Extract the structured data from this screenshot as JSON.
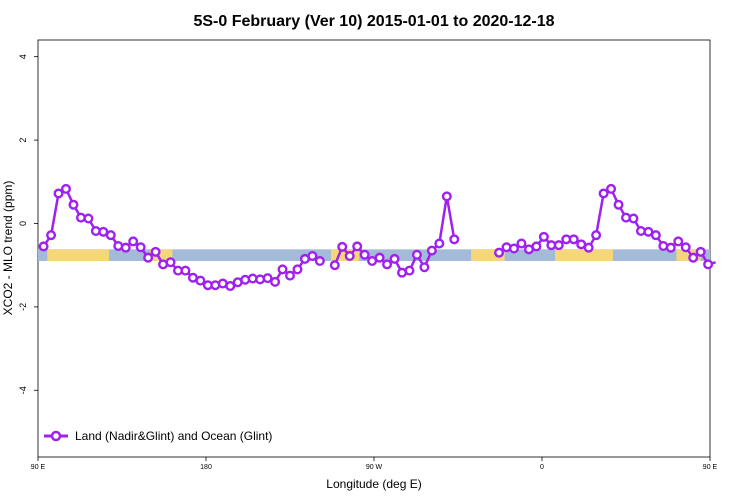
{
  "chart_data": {
    "type": "line",
    "title": "5S-0 February (Ver 10)   2015-01-01 to 2020-12-18",
    "xlabel": "Longitude (deg E)",
    "ylabel": "XCO2 - MLO trend (ppm)",
    "xlim": [
      90,
      450
    ],
    "ylim": [
      -5.6,
      4.4
    ],
    "x_ticks": [
      {
        "value": 90,
        "label": "90 E"
      },
      {
        "value": 180,
        "label": "180"
      },
      {
        "value": 270,
        "label": "90 W"
      },
      {
        "value": 360,
        "label": "0"
      },
      {
        "value": 450,
        "label": "90 E"
      },
      {
        "value": 540,
        "label": "180"
      }
    ],
    "y_ticks": [
      {
        "value": -4,
        "label": "-4"
      },
      {
        "value": -2,
        "label": "-2"
      },
      {
        "value": 0,
        "label": "0"
      },
      {
        "value": 2,
        "label": "2"
      },
      {
        "value": 4,
        "label": "4"
      }
    ],
    "legend": {
      "position": "bottom-left",
      "label": "Land (Nadir&Glint) and Ocean (Glint)"
    },
    "series": [
      {
        "name": "Land (Nadir&Glint) and Ocean (Glint)",
        "color": "#a020f0",
        "points": [
          [
            93,
            -0.55
          ],
          [
            97,
            -0.28
          ],
          [
            101,
            0.72
          ],
          [
            105,
            0.83
          ],
          [
            109,
            0.45
          ],
          [
            113,
            0.14
          ],
          [
            117,
            0.12
          ],
          [
            121,
            -0.18
          ],
          [
            125,
            -0.2
          ],
          [
            129,
            -0.28
          ],
          [
            133,
            -0.54
          ],
          [
            137,
            -0.58
          ],
          [
            141,
            -0.43
          ],
          [
            145,
            -0.57
          ],
          [
            149,
            -0.82
          ],
          [
            153,
            -0.68
          ],
          [
            157,
            -0.98
          ],
          [
            161,
            -0.93
          ],
          [
            165,
            -1.13
          ],
          [
            169,
            -1.13
          ],
          [
            173,
            -1.3
          ],
          [
            177,
            -1.37
          ],
          [
            181,
            -1.48
          ],
          [
            185,
            -1.48
          ],
          [
            189,
            -1.44
          ],
          [
            193,
            -1.5
          ],
          [
            197,
            -1.41
          ],
          [
            201,
            -1.35
          ],
          [
            205,
            -1.32
          ],
          [
            209,
            -1.34
          ],
          [
            213,
            -1.31
          ],
          [
            217,
            -1.4
          ],
          [
            221,
            -1.1
          ],
          [
            225,
            -1.25
          ],
          [
            229,
            -1.1
          ],
          [
            233,
            -0.85
          ],
          [
            237,
            -0.78
          ],
          [
            241,
            -0.9
          ],
          [
            245,
            null
          ],
          [
            249,
            -1.0
          ],
          [
            253,
            -0.56
          ],
          [
            257,
            -0.78
          ],
          [
            261,
            -0.55
          ],
          [
            265,
            -0.75
          ],
          [
            269,
            -0.9
          ],
          [
            273,
            -0.82
          ],
          [
            277,
            -0.98
          ],
          [
            281,
            -0.85
          ],
          [
            285,
            -1.18
          ],
          [
            289,
            -1.13
          ],
          [
            293,
            -0.75
          ],
          [
            297,
            -1.05
          ],
          [
            301,
            -0.65
          ],
          [
            305,
            -0.48
          ],
          [
            309,
            0.65
          ],
          [
            313,
            -0.38
          ],
          [
            317,
            null
          ],
          [
            321,
            null
          ],
          [
            325,
            null
          ],
          [
            329,
            null
          ],
          [
            333,
            null
          ],
          [
            337,
            -0.7
          ],
          [
            341,
            -0.57
          ],
          [
            345,
            -0.6
          ],
          [
            349,
            -0.48
          ],
          [
            353,
            -0.62
          ],
          [
            357,
            -0.55
          ],
          [
            361,
            -0.32
          ],
          [
            365,
            -0.52
          ],
          [
            369,
            -0.52
          ],
          [
            373,
            -0.38
          ],
          [
            377,
            -0.38
          ],
          [
            381,
            -0.5
          ],
          [
            385,
            -0.58
          ],
          [
            389,
            -0.28
          ],
          [
            393,
            0.72
          ],
          [
            397,
            0.83
          ],
          [
            401,
            0.45
          ],
          [
            405,
            0.14
          ],
          [
            409,
            0.12
          ],
          [
            413,
            -0.18
          ],
          [
            417,
            -0.2
          ],
          [
            421,
            -0.28
          ],
          [
            425,
            -0.54
          ],
          [
            429,
            -0.58
          ],
          [
            433,
            -0.43
          ],
          [
            437,
            -0.57
          ],
          [
            441,
            -0.82
          ],
          [
            445,
            -0.68
          ],
          [
            449,
            -0.98
          ],
          [
            453,
            -0.93
          ]
        ]
      }
    ],
    "background_band": {
      "y_range": [
        -0.9,
        -0.62
      ],
      "ocean_color": "#a3bad9",
      "land_color": "#f5d77a",
      "land_lon_ranges": [
        [
          95,
          128
        ],
        [
          150,
          162
        ],
        [
          247,
          262
        ],
        [
          322,
          340
        ],
        [
          367,
          398
        ],
        [
          432,
          445
        ]
      ]
    }
  }
}
